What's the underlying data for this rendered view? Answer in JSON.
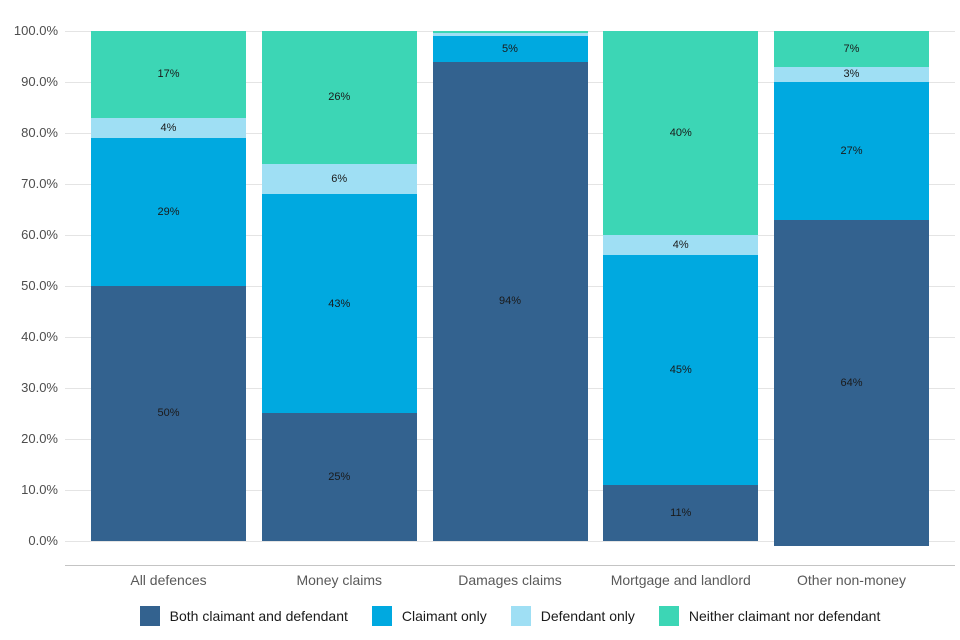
{
  "colors": {
    "both": "#33628F",
    "claimant": "#00A9E0",
    "defendant": "#9FDFF4",
    "neither": "#3CD6B5",
    "gridline": "#E4E4E4",
    "axis_line": "#C4C4C4",
    "tick_label": "#4D4D4D",
    "category_label": "#595959",
    "data_label": "#1A1A1A"
  },
  "chart_data": {
    "type": "bar",
    "stacked": true,
    "percent_stacked": true,
    "title": "",
    "xlabel": "",
    "ylabel": "",
    "grid": true,
    "legend_position": "bottom",
    "categories": [
      "All defences",
      "Money claims",
      "Damages claims",
      "Mortgage and landlord",
      "Other non-money"
    ],
    "series": [
      {
        "name": "Both claimant and defendant",
        "color_key": "both",
        "values": [
          50,
          25,
          94,
          11,
          64
        ],
        "labels": [
          "50%",
          "25%",
          "94%",
          "11%",
          "64%"
        ]
      },
      {
        "name": "Claimant only",
        "color_key": "claimant",
        "values": [
          29,
          43,
          5,
          45,
          27
        ],
        "labels": [
          "29%",
          "43%",
          "5%",
          "45%",
          "27%"
        ]
      },
      {
        "name": "Defendant only",
        "color_key": "defendant",
        "values": [
          4,
          6,
          0.6,
          4,
          3
        ],
        "labels": [
          "4%",
          "6%",
          "",
          "4%",
          "3%"
        ]
      },
      {
        "name": "Neither claimant nor defendant",
        "color_key": "neither",
        "values": [
          17,
          26,
          0.4,
          40,
          7
        ],
        "labels": [
          "17%",
          "26%",
          "",
          "40%",
          "7%"
        ]
      }
    ],
    "y_axis": {
      "min": 0,
      "max": 100,
      "tick_step": 10,
      "ticks": [
        "100.0%",
        "90.0%",
        "80.0%",
        "70.0%",
        "60.0%",
        "50.0%",
        "40.0%",
        "30.0%",
        "20.0%",
        "10.0%",
        "0.0%"
      ]
    },
    "legend": [
      "Both claimant and defendant",
      "Claimant only",
      "Defendant only",
      "Neither claimant nor defendant"
    ]
  }
}
